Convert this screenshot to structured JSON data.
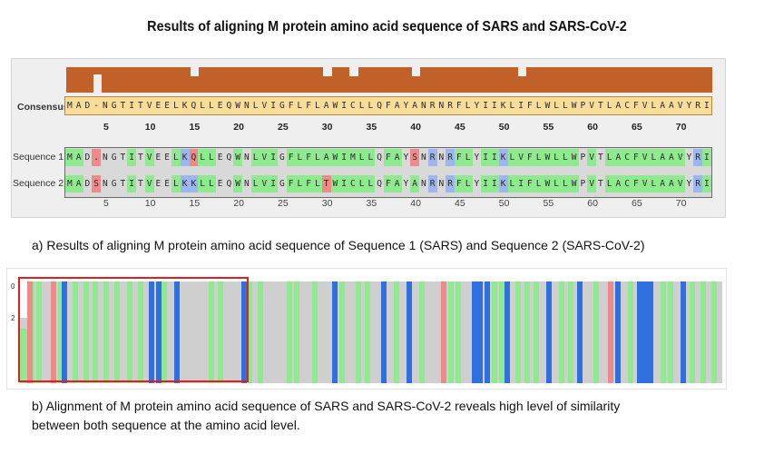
{
  "title": "Results of aligning M protein amino acid sequence of SARS and SARS-CoV-2",
  "panel_a": {
    "consensus_label": "Consensus",
    "consensus": "MAD-NGTITVEELKQLLEQWNLVIGFLFLAWICLLQFAYANRNRFLYIIKLIFLWLLWPVTLACFVLAAVYRI",
    "sequence_1_label": "Sequence 1",
    "sequence_1": "MAD.NGTITVEELKQLLEQWNLVIGFLFLAWIMLLQFAYSNRNRFLYIIKLVFLWLLWPVTLACFVLAAVYRI",
    "sequence_2_label": "Sequence 2",
    "sequence_2": "MADSNGTITVEELKKLLEQWNLVIGFLFLTWICLLQFAYANRNRFLYIIKLIFLWLLWPVTLACFVLAAVYRI",
    "consensus_ticks": [
      "5",
      "10",
      "15",
      "20",
      "25",
      "30",
      "35",
      "40",
      "45",
      "50",
      "55",
      "60",
      "65",
      "70"
    ],
    "bottom_ticks": [
      "5",
      "10",
      "15",
      "20",
      "25",
      "30",
      "35",
      "40",
      "45",
      "50",
      "55",
      "60",
      "65",
      "70"
    ],
    "caption": "a) Results of aligning M protein amino acid sequence of Sequence 1 (SARS) and Sequence 2 (SARS-CoV-2)"
  },
  "panel_b": {
    "axis_top": "0",
    "axis_mid": "2",
    "caption_line1": "b) Alignment of M protein amino acid sequence of SARS and SARS-CoV-2 reveals high level of similarity",
    "caption_line2": "between both sequence at the amino acid level."
  },
  "colors": {
    "identity_bar": "#c2602a",
    "consensus_bg": "#f8dc9a",
    "green": "#8fea8f",
    "blue": "#2f6fe0",
    "red": "#f08a8a",
    "grey": "#cfcfcf",
    "highlight_box": "#e02020"
  }
}
